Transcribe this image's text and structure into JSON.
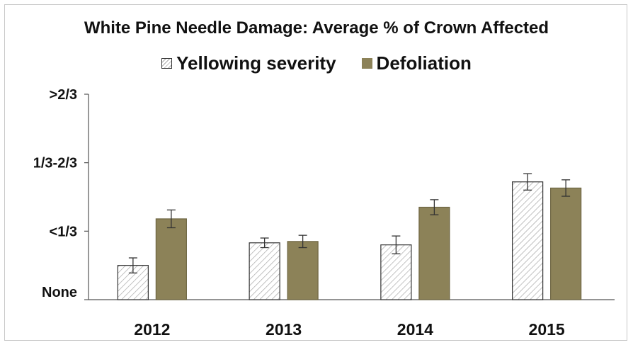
{
  "chart_data": {
    "type": "bar",
    "title": "White Pine Needle Damage: Average % of Crown Affected",
    "xlabel": "",
    "ylabel": "",
    "categories": [
      "2012",
      "2013",
      "2014",
      "2015"
    ],
    "y_tick_labels": [
      "None",
      "<1/3",
      "1/3-2/3",
      ">2/3"
    ],
    "ylim": [
      0,
      3
    ],
    "grid": false,
    "legend_position": "top",
    "series": [
      {
        "name": "Yellowing severity",
        "fill": "hatched",
        "color": "#ffffff",
        "values": [
          0.5,
          0.83,
          0.8,
          1.72
        ],
        "errors": [
          0.11,
          0.07,
          0.13,
          0.12
        ]
      },
      {
        "name": "Defoliation",
        "fill": "solid",
        "color": "#8c8258",
        "values": [
          1.18,
          0.85,
          1.35,
          1.63
        ],
        "errors": [
          0.13,
          0.09,
          0.11,
          0.12
        ]
      }
    ]
  }
}
